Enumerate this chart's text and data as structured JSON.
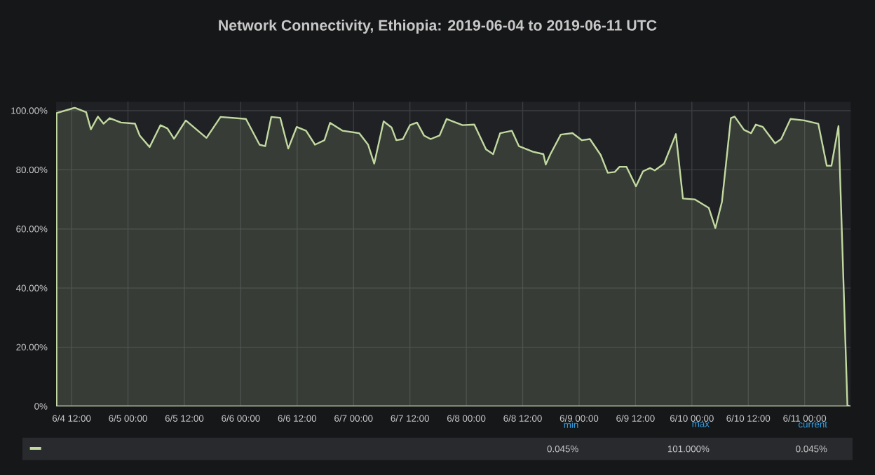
{
  "chart_data": {
    "type": "area",
    "title": "Network Connectivity, Ethiopia: 2019-06-04 to 2019-06-11 UTC",
    "xlim": [
      "2019-06-04T08:42",
      "2019-06-11T09:48"
    ],
    "ylim": [
      0,
      103
    ],
    "xticks": [
      {
        "value": "2019-06-04T12:00",
        "label": "6/4 12:00"
      },
      {
        "value": "2019-06-05T00:00",
        "label": "6/5 00:00"
      },
      {
        "value": "2019-06-05T12:00",
        "label": "6/5 12:00"
      },
      {
        "value": "2019-06-06T00:00",
        "label": "6/6 00:00"
      },
      {
        "value": "2019-06-06T12:00",
        "label": "6/6 12:00"
      },
      {
        "value": "2019-06-07T00:00",
        "label": "6/7 00:00"
      },
      {
        "value": "2019-06-07T12:00",
        "label": "6/7 12:00"
      },
      {
        "value": "2019-06-08T00:00",
        "label": "6/8 00:00"
      },
      {
        "value": "2019-06-08T12:00",
        "label": "6/8 12:00"
      },
      {
        "value": "2019-06-09T00:00",
        "label": "6/9 00:00"
      },
      {
        "value": "2019-06-09T12:00",
        "label": "6/9 12:00"
      },
      {
        "value": "2019-06-10T00:00",
        "label": "6/10 00:00"
      },
      {
        "value": "2019-06-10T12:00",
        "label": "6/10 12:00"
      },
      {
        "value": "2019-06-11T00:00",
        "label": "6/11 00:00"
      }
    ],
    "yticks": [
      {
        "value": 0,
        "label": "0%"
      },
      {
        "value": 20,
        "label": "20.00%"
      },
      {
        "value": 40,
        "label": "40.00%"
      },
      {
        "value": 60,
        "label": "60.00%"
      },
      {
        "value": 80,
        "label": "80.00%"
      },
      {
        "value": 100,
        "label": "100.00%"
      }
    ],
    "grid": true,
    "legend": false,
    "marker": "none",
    "line_style": "solid",
    "annotations": [
      "min",
      "max",
      "current",
      "0.045%",
      "101.000%",
      "0.045%"
    ],
    "series": [
      {
        "color": "#c2d9a0",
        "x": [
          "2019-06-04T08:48",
          "2019-06-04T12:42",
          "2019-06-04T15:06",
          "2019-06-04T16:06",
          "2019-06-04T17:36",
          "2019-06-04T18:48",
          "2019-06-04T20:06",
          "2019-06-04T22:30",
          "2019-06-05T01:30",
          "2019-06-05T02:30",
          "2019-06-05T04:36",
          "2019-06-05T06:54",
          "2019-06-05T08:24",
          "2019-06-05T09:48",
          "2019-06-05T12:18",
          "2019-06-05T16:42",
          "2019-06-05T19:42",
          "2019-06-06T01:06",
          "2019-06-06T04:00",
          "2019-06-06T05:12",
          "2019-06-06T06:30",
          "2019-06-06T08:24",
          "2019-06-06T10:06",
          "2019-06-06T11:54",
          "2019-06-06T13:54",
          "2019-06-06T15:48",
          "2019-06-06T17:48",
          "2019-06-06T19:00",
          "2019-06-06T21:42",
          "2019-06-07T01:12",
          "2019-06-07T03:06",
          "2019-06-07T04:24",
          "2019-06-07T06:24",
          "2019-06-07T08:06",
          "2019-06-07T09:06",
          "2019-06-07T10:30",
          "2019-06-07T12:00",
          "2019-06-07T13:30",
          "2019-06-07T15:00",
          "2019-06-07T16:24",
          "2019-06-07T18:18",
          "2019-06-07T19:48",
          "2019-06-07T23:12",
          "2019-06-08T01:42",
          "2019-06-08T04:12",
          "2019-06-08T05:42",
          "2019-06-08T07:12",
          "2019-06-08T09:42",
          "2019-06-08T11:12",
          "2019-06-08T14:12",
          "2019-06-08T16:24",
          "2019-06-08T16:54",
          "2019-06-08T17:54",
          "2019-06-08T20:06",
          "2019-06-08T22:36",
          "2019-06-09T00:36",
          "2019-06-09T02:18",
          "2019-06-09T04:36",
          "2019-06-09T06:06",
          "2019-06-09T07:36",
          "2019-06-09T08:36",
          "2019-06-09T10:06",
          "2019-06-09T12:06",
          "2019-06-09T13:36",
          "2019-06-09T15:06",
          "2019-06-09T16:06",
          "2019-06-09T18:06",
          "2019-06-09T20:36",
          "2019-06-09T22:06",
          "2019-06-10T00:36",
          "2019-06-10T03:36",
          "2019-06-10T05:00",
          "2019-06-10T06:24",
          "2019-06-10T08:18",
          "2019-06-10T09:06",
          "2019-06-10T11:06",
          "2019-06-10T12:36",
          "2019-06-10T13:36",
          "2019-06-10T15:06",
          "2019-06-10T17:42",
          "2019-06-10T19:00",
          "2019-06-10T21:00",
          "2019-06-10T23:54",
          "2019-06-11T02:54",
          "2019-06-11T04:42",
          "2019-06-11T05:42",
          "2019-06-11T07:12",
          "2019-06-11T09:06",
          "2019-06-11T09:42"
        ],
        "values": [
          99.2,
          101,
          99.5,
          93.7,
          98,
          95.6,
          97.5,
          96,
          95.6,
          91.6,
          87.7,
          95.1,
          94,
          90.5,
          96.7,
          90.8,
          97.9,
          97.2,
          88.5,
          88,
          97.9,
          97.6,
          87.2,
          94.5,
          93.2,
          88.5,
          90,
          95.9,
          93.2,
          92.4,
          88.5,
          82.1,
          96.4,
          94.3,
          90,
          90.4,
          95.1,
          96,
          91.6,
          90.4,
          91.6,
          97.2,
          95.1,
          95.3,
          86.9,
          85.3,
          92.4,
          93.2,
          88,
          86.1,
          85.3,
          81.8,
          85.3,
          91.9,
          92.4,
          90,
          90.4,
          85,
          79,
          79.3,
          81,
          81,
          74.4,
          79.5,
          80.6,
          79.8,
          82.1,
          92.1,
          70.3,
          70,
          67.1,
          60.3,
          69.2,
          97.5,
          98,
          93.5,
          92.4,
          95.3,
          94.5,
          89,
          90.4,
          97.2,
          96.7,
          95.6,
          81.4,
          81.4,
          94.8,
          0.3,
          0
        ]
      }
    ]
  }
}
